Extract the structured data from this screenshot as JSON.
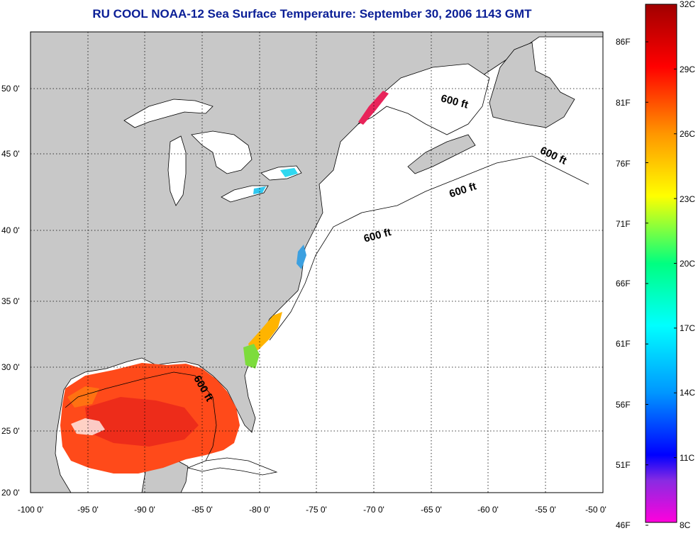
{
  "title": "RU COOL  NOAA-12  Sea Surface Temperature:  September 30, 2006 1143 GMT",
  "map": {
    "lon_labels": [
      "-100 0'",
      "-95 0'",
      "-90 0'",
      "-85 0'",
      "-80 0'",
      "-75 0'",
      "-70 0'",
      "-65 0'",
      "-60 0'",
      "-55 0'",
      "-50 0'"
    ],
    "lat_labels": [
      "50 0'",
      "45 0'",
      "40 0'",
      "35 0'",
      "30 0'",
      "25 0'",
      "20 0'"
    ],
    "lon_range": [
      -100,
      -50
    ],
    "lat_range": [
      20,
      52.5
    ],
    "grid": "dotted",
    "land_color": "#c8c8c8",
    "ocean_color": "#ffffff",
    "contour_labels": [
      "600 ft",
      "600 ft",
      "600 ft",
      "600 ft",
      "600 ft"
    ]
  },
  "colorbar": {
    "celsius_labels": [
      "32C",
      "29C",
      "26C",
      "23C",
      "20C",
      "17C",
      "14C",
      "11C",
      "8C"
    ],
    "fahrenheit_labels": [
      "86F",
      "81F",
      "76F",
      "71F",
      "66F",
      "61F",
      "56F",
      "51F",
      "46F"
    ],
    "range_c": [
      8,
      32
    ],
    "colors": [
      "#ff00dc",
      "#8a2be2",
      "#0000ff",
      "#0096ff",
      "#00ffff",
      "#00ff80",
      "#ffff00",
      "#ff9600",
      "#ff0000",
      "#a00000"
    ]
  }
}
